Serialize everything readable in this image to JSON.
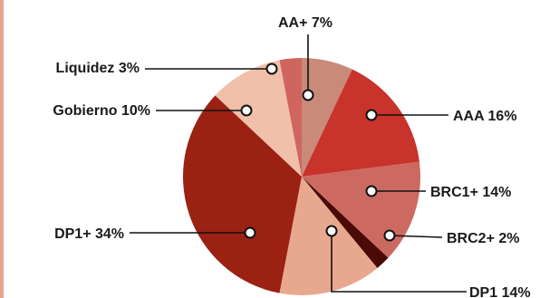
{
  "chart_data": {
    "type": "pie",
    "title": "",
    "slices": [
      {
        "label": "AA+",
        "pct_text": "7%",
        "value": 7,
        "color": "#c98a7a"
      },
      {
        "label": "AAA",
        "pct_text": "16%",
        "value": 16,
        "color": "#c8332c"
      },
      {
        "label": "BRC1+",
        "pct_text": "14%",
        "value": 14,
        "color": "#cc6a62"
      },
      {
        "label": "BRC2+",
        "pct_text": "2%",
        "value": 2,
        "color": "#4a0a06"
      },
      {
        "label": "DP1",
        "pct_text": "14%",
        "value": 14,
        "color": "#e8a890"
      },
      {
        "label": "DP1+",
        "pct_text": "34%",
        "value": 34,
        "color": "#9b2113"
      },
      {
        "label": "Gobierno",
        "pct_text": "10%",
        "value": 10,
        "color": "#f0c0aa"
      },
      {
        "label": "Liquidez",
        "pct_text": "3%",
        "value": 3,
        "color": "#d0655f"
      }
    ],
    "legend": "none"
  }
}
